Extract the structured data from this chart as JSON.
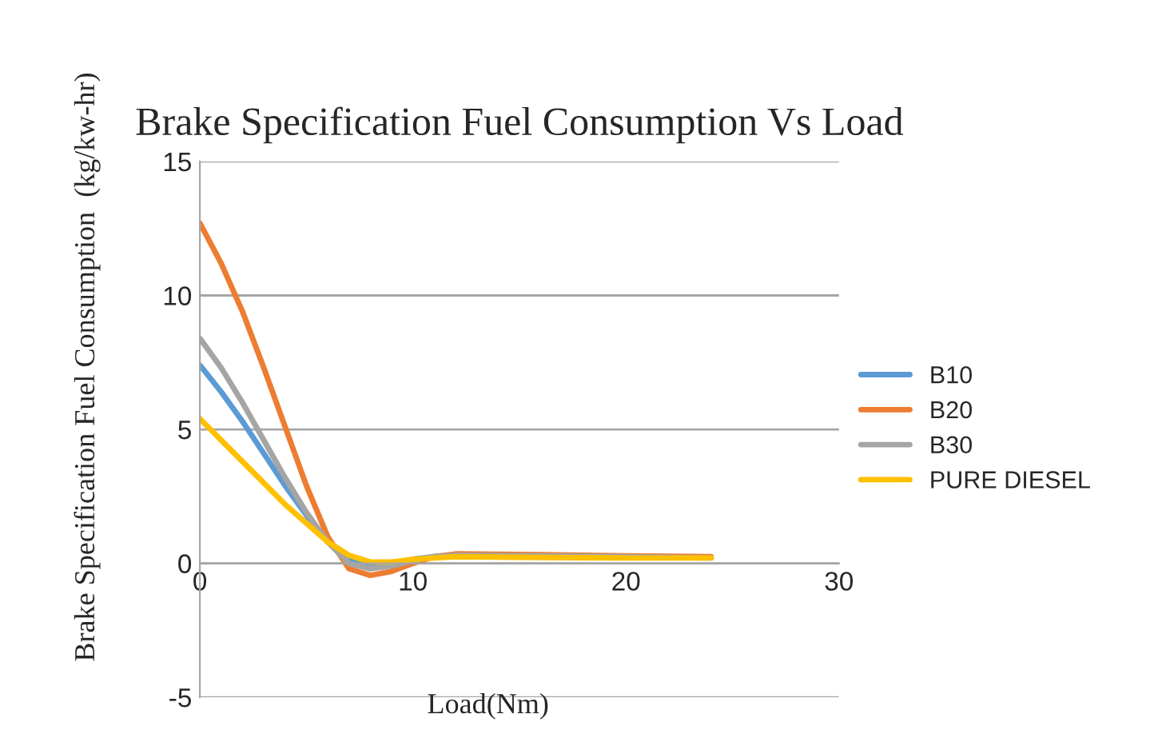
{
  "chart_data": {
    "type": "line",
    "title": "Brake Specification Fuel Consumption Vs Load",
    "xlabel": "Load(Nm)",
    "ylabel": "Brake Specification Fuel Consumption  (kg/kw-hr)",
    "x": [
      0,
      1,
      2,
      3,
      4,
      5,
      6,
      7,
      8,
      9,
      10,
      11,
      12,
      16,
      20,
      24
    ],
    "series": [
      {
        "name": "B10",
        "color": "#5b9bd5",
        "values": [
          7.4,
          6.4,
          5.3,
          4.1,
          2.9,
          1.8,
          0.8,
          0.1,
          -0.1,
          0.0,
          0.15,
          0.25,
          0.3,
          null,
          null,
          null
        ]
      },
      {
        "name": "B20",
        "color": "#ed7d31",
        "values": [
          12.7,
          11.2,
          9.4,
          7.3,
          5.1,
          2.9,
          1.0,
          -0.2,
          -0.45,
          -0.3,
          0.0,
          0.25,
          0.35,
          0.32,
          0.28,
          0.25
        ]
      },
      {
        "name": "B30",
        "color": "#a5a5a5",
        "values": [
          8.4,
          7.3,
          6.0,
          4.6,
          3.2,
          1.9,
          0.8,
          0.0,
          -0.2,
          -0.1,
          0.1,
          0.25,
          0.3,
          0.28,
          0.25,
          0.2
        ]
      },
      {
        "name": "PURE DIESEL",
        "color": "#ffc000",
        "values": [
          5.4,
          4.6,
          3.8,
          3.0,
          2.2,
          1.5,
          0.8,
          0.3,
          0.05,
          0.05,
          0.15,
          0.2,
          0.25,
          0.22,
          0.2,
          0.2
        ]
      }
    ],
    "xlim": [
      0,
      30
    ],
    "xticks": [
      0,
      10,
      20,
      30
    ],
    "ylim": [
      -5,
      15
    ],
    "yticks": [
      -5,
      0,
      5,
      10,
      15
    ],
    "grid": "y",
    "legend": "right",
    "marker": "none",
    "line_style": "solid"
  }
}
